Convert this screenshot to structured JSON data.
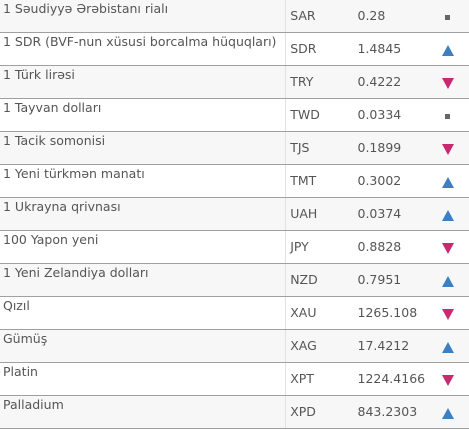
{
  "colors": {
    "up": "#3d7fc1",
    "down": "#c72a6f",
    "flat": "#666666"
  },
  "rows": [
    {
      "name": "1 Səudiyyə Ərəbistanı rialı",
      "code": "SAR",
      "value": "0.28",
      "trend": "flat",
      "trend_icon": "square-icon"
    },
    {
      "name": "1 SDR (BVF-nun xüsusi borcalma hüquqları)",
      "code": "SDR",
      "value": "1.4845",
      "trend": "up",
      "trend_icon": "triangle-up-icon"
    },
    {
      "name": "1 Türk lirəsi",
      "code": "TRY",
      "value": "0.4222",
      "trend": "down",
      "trend_icon": "triangle-down-icon"
    },
    {
      "name": "1 Tayvan dolları",
      "code": "TWD",
      "value": "0.0334",
      "trend": "flat",
      "trend_icon": "square-icon"
    },
    {
      "name": "1 Tacik somonisi",
      "code": "TJS",
      "value": "0.1899",
      "trend": "down",
      "trend_icon": "triangle-down-icon"
    },
    {
      "name": "1 Yeni türkmən manatı",
      "code": "TMT",
      "value": "0.3002",
      "trend": "up",
      "trend_icon": "triangle-up-icon"
    },
    {
      "name": "1 Ukrayna qrivnası",
      "code": "UAH",
      "value": "0.0374",
      "trend": "up",
      "trend_icon": "triangle-up-icon"
    },
    {
      "name": "100 Yapon yeni",
      "code": "JPY",
      "value": "0.8828",
      "trend": "down",
      "trend_icon": "triangle-down-icon"
    },
    {
      "name": "1 Yeni Zelandiya dolları",
      "code": "NZD",
      "value": "0.7951",
      "trend": "up",
      "trend_icon": "triangle-up-icon"
    },
    {
      "name": "Qızıl",
      "code": "XAU",
      "value": "1265.108",
      "trend": "down",
      "trend_icon": "triangle-down-icon"
    },
    {
      "name": "Gümüş",
      "code": "XAG",
      "value": "17.4212",
      "trend": "up",
      "trend_icon": "triangle-up-icon"
    },
    {
      "name": "Platin",
      "code": "XPT",
      "value": "1224.4166",
      "trend": "down",
      "trend_icon": "triangle-down-icon"
    },
    {
      "name": "Palladium",
      "code": "XPD",
      "value": "843.2303",
      "trend": "up",
      "trend_icon": "triangle-up-icon"
    }
  ]
}
